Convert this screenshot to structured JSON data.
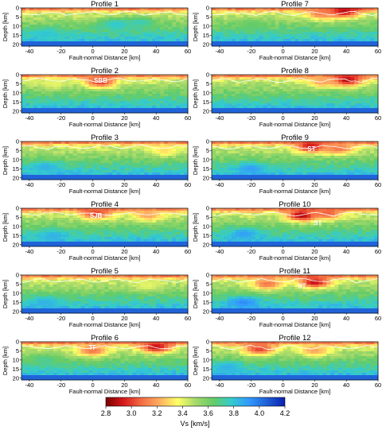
{
  "chart_data": {
    "type": "heatmap",
    "x_label": "Fault-normal Distance [km]",
    "y_label": "Depth [km]",
    "x_range": [
      -45,
      60
    ],
    "y_range": [
      0,
      21
    ],
    "x_ticks": [
      "-40",
      "-20",
      "0",
      "20",
      "40",
      "60"
    ],
    "y_ticks": [
      "0",
      "5",
      "10",
      "15",
      "20"
    ],
    "colorbar": {
      "label": "Vs [km/s]",
      "min": 2.8,
      "max": 4.2,
      "ticks": [
        "2.8",
        "3.0",
        "3.2",
        "3.4",
        "3.6",
        "3.8",
        "4.0",
        "4.2"
      ],
      "colors": [
        "#7a0000",
        "#d7191c",
        "#f46d43",
        "#fdae61",
        "#ffff66",
        "#a6d96a",
        "#66cc66",
        "#33cccc",
        "#3399ff",
        "#1f5fd6",
        "#0a1fb0"
      ]
    },
    "panels": [
      {
        "title": "Profile 1",
        "annotations": [],
        "anomalies": [
          {
            "x": 15,
            "z": 9,
            "v": 3.8
          },
          {
            "x": 30,
            "z": 8,
            "v": 3.75
          },
          {
            "x": -30,
            "z": 14,
            "v": 3.8
          }
        ]
      },
      {
        "title": "Profile 7",
        "annotations": [],
        "anomalies": [
          {
            "x": 38,
            "z": 2,
            "v": 2.85
          },
          {
            "x": 25,
            "z": 3,
            "v": 3.1
          },
          {
            "x": -20,
            "z": 9,
            "v": 3.65
          }
        ]
      },
      {
        "title": "Profile 2",
        "annotations": [
          {
            "text": "SBB",
            "x": 5,
            "z": 3
          }
        ],
        "anomalies": [
          {
            "x": 5,
            "z": 4,
            "v": 3.0
          },
          {
            "x": -25,
            "z": 5,
            "v": 3.4
          }
        ]
      },
      {
        "title": "Profile 8",
        "annotations": [],
        "anomalies": [
          {
            "x": 40,
            "z": 3,
            "v": 2.85
          },
          {
            "x": 25,
            "z": 4,
            "v": 3.2
          }
        ]
      },
      {
        "title": "Profile 3",
        "annotations": [],
        "anomalies": [
          {
            "x": 45,
            "z": 5,
            "v": 3.3
          },
          {
            "x": -30,
            "z": 14,
            "v": 3.85
          }
        ]
      },
      {
        "title": "Profile 9",
        "annotations": [
          {
            "text": "ST",
            "x": 18,
            "z": 4
          }
        ],
        "anomalies": [
          {
            "x": 18,
            "z": 3,
            "v": 2.9
          },
          {
            "x": 35,
            "z": 4,
            "v": 3.1
          },
          {
            "x": -20,
            "z": 15,
            "v": 3.9
          }
        ]
      },
      {
        "title": "Profile 4",
        "annotations": [
          {
            "text": "SJB",
            "x": 2,
            "z": 4
          }
        ],
        "anomalies": [
          {
            "x": 2,
            "z": 3,
            "v": 3.0
          },
          {
            "x": 35,
            "z": 4,
            "v": 3.2
          },
          {
            "x": -25,
            "z": 15,
            "v": 3.85
          }
        ]
      },
      {
        "title": "Profile 10",
        "annotations": [
          {
            "text": "ST",
            "x": 22,
            "z": 8
          }
        ],
        "anomalies": [
          {
            "x": 12,
            "z": 4,
            "v": 2.85
          },
          {
            "x": 28,
            "z": 3,
            "v": 3.05
          },
          {
            "x": -25,
            "z": 14,
            "v": 3.9
          }
        ]
      },
      {
        "title": "Profile 5",
        "annotations": [],
        "anomalies": [
          {
            "x": 35,
            "z": 6,
            "v": 3.4
          },
          {
            "x": -30,
            "z": 15,
            "v": 3.85
          }
        ]
      },
      {
        "title": "Profile 11",
        "annotations": [
          {
            "text": "ST",
            "x": 12,
            "z": 6
          }
        ],
        "anomalies": [
          {
            "x": 20,
            "z": 4,
            "v": 2.9
          },
          {
            "x": -10,
            "z": 5,
            "v": 3.1
          },
          {
            "x": -25,
            "z": 15,
            "v": 3.95
          }
        ]
      },
      {
        "title": "Profile 6",
        "annotations": [
          {
            "text": "TF",
            "x": 0,
            "z": 3
          }
        ],
        "anomalies": [
          {
            "x": 40,
            "z": 3,
            "v": 2.9
          },
          {
            "x": 0,
            "z": 5,
            "v": 3.1
          },
          {
            "x": -30,
            "z": 10,
            "v": 3.7
          }
        ]
      },
      {
        "title": "Profile 12",
        "annotations": [],
        "anomalies": [
          {
            "x": -15,
            "z": 4,
            "v": 3.0
          },
          {
            "x": 20,
            "z": 5,
            "v": 3.2
          },
          {
            "x": -35,
            "z": 14,
            "v": 3.85
          }
        ]
      }
    ]
  }
}
